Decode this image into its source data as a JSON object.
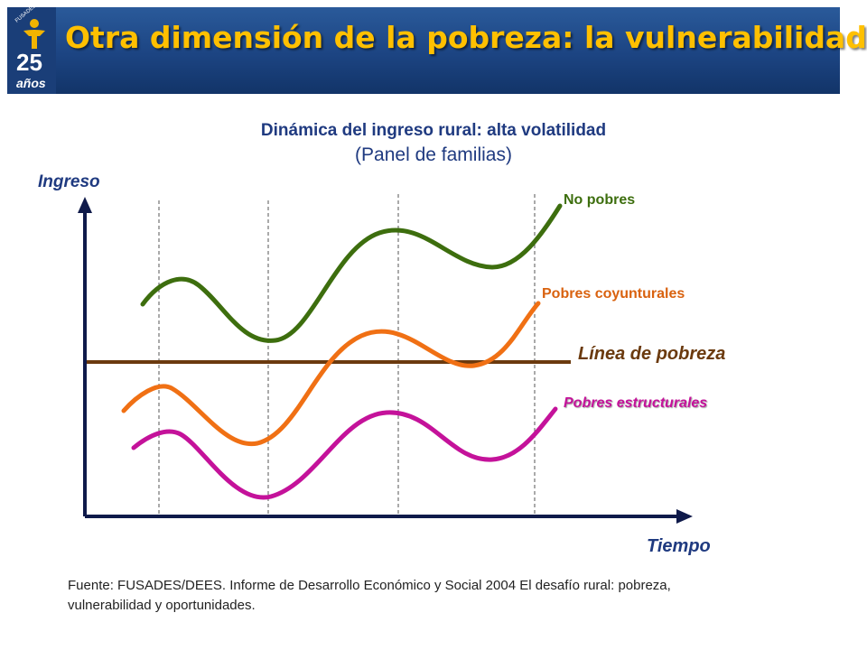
{
  "header": {
    "title": "Otra dimensión de la pobreza: la vulnerabilidad",
    "logo": {
      "org": "FUSADES",
      "number": "25",
      "word": "años"
    }
  },
  "chart": {
    "title": "Dinámica del ingreso rural: alta volatilidad",
    "subtitle": "(Panel de familias)",
    "y_axis_label": "Ingreso",
    "x_axis_label": "Tiempo",
    "curve_labels": {
      "no_pobres": "No pobres",
      "pobres_coyunturales": "Pobres coyunturales",
      "linea_pobreza": "Línea de pobreza",
      "pobres_estructurales": "Pobres estructurales"
    }
  },
  "colors": {
    "banner": "#1c4482",
    "title_gold": "#ffc000",
    "no_pobres": "#3d6e0e",
    "pobres_coyunturales": "#f07014",
    "linea_pobreza": "#6b3a0e",
    "pobres_estructurales": "#c4129a",
    "axis": "#0f1a4a"
  },
  "footer": {
    "source": "Fuente: FUSADES/DEES. Informe de Desarrollo Económico y Social 2004 El desafío rural: pobreza, vulnerabilidad y oportunidades."
  }
}
